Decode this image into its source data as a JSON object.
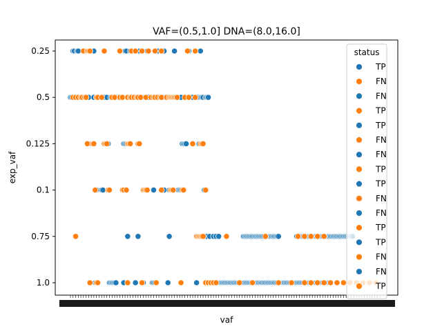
{
  "chart_data": {
    "type": "scatter",
    "title": "VAF=(0.5,1.0] DNA=(8.0,16.0]",
    "xlabel": "vaf",
    "ylabel": "exp_vaf",
    "x_scale": "categorical",
    "y_scale": "categorical",
    "y_categories": [
      "0.25",
      "0.5",
      "0.125",
      "0.1",
      "0.75",
      "1.0"
    ],
    "x_ticklabels_note": "dense overlapping categorical labels, unreadable",
    "grid": false,
    "legend": {
      "title": "status",
      "placement": "upper right",
      "entries": [
        {
          "label": "TP",
          "color": "#1f77b4"
        },
        {
          "label": "FN",
          "color": "#ff7f0e"
        },
        {
          "label": "FN",
          "color": "#1f77b4"
        },
        {
          "label": "TP",
          "color": "#ff7f0e"
        },
        {
          "label": "TP",
          "color": "#1f77b4"
        },
        {
          "label": "FN",
          "color": "#ff7f0e"
        },
        {
          "label": "FN",
          "color": "#1f77b4"
        },
        {
          "label": "TP",
          "color": "#ff7f0e"
        },
        {
          "label": "TP",
          "color": "#1f77b4"
        },
        {
          "label": "FN",
          "color": "#ff7f0e"
        },
        {
          "label": "FN",
          "color": "#1f77b4"
        },
        {
          "label": "TP",
          "color": "#ff7f0e"
        },
        {
          "label": "TP",
          "color": "#1f77b4"
        },
        {
          "label": "FN",
          "color": "#ff7f0e"
        },
        {
          "label": "FN",
          "color": "#1f77b4"
        },
        {
          "label": "TP",
          "color": "#ff7f0e"
        }
      ]
    },
    "colors": {
      "blue": "#1f77b4",
      "orange": "#ff7f0e"
    },
    "x_category_count": 240,
    "series": [
      {
        "color": "#1f77b4",
        "points": [
          {
            "y": "0.25",
            "x": [
              2,
              3,
              5,
              6,
              18,
              42,
              43,
              46,
              53,
              59,
              67,
              72,
              80,
              91,
              100
            ]
          },
          {
            "y": "0.5",
            "x": [
              0,
              1,
              3,
              5,
              9,
              10,
              13,
              14,
              18,
              25,
              26,
              28,
              31,
              33,
              36,
              37,
              40,
              46,
              48,
              56,
              57,
              58,
              60,
              63,
              64,
              68,
              72,
              73,
              83,
              85,
              94,
              98,
              100,
              101,
              102,
              104,
              105,
              106
            ]
          },
          {
            "y": "0.125",
            "x": [
              16,
              29,
              41,
              42,
              43,
              86,
              87,
              88,
              89,
              99
            ]
          },
          {
            "y": "0.1",
            "x": [
              20,
              24,
              25,
              64,
              72,
              76,
              83,
              84,
              85,
              103
            ]
          },
          {
            "y": "0.75",
            "x": [
              44,
              52,
              76,
              103,
              105,
              107,
              110,
              112,
              114,
              133,
              134,
              135,
              136,
              137,
              138,
              139,
              140,
              141,
              142,
              143,
              144,
              145,
              146,
              147,
              148,
              149,
              150,
              151,
              152,
              153,
              154,
              155,
              156,
              157,
              158,
              159,
              160,
              174,
              175,
              176,
              177,
              178,
              179,
              180,
              181,
              182,
              183,
              184,
              185,
              186,
              187,
              188,
              189,
              190,
              191,
              192,
              193,
              194,
              195,
              196,
              197,
              198,
              199,
              200,
              201,
              202,
              203,
              204,
              205,
              206,
              207,
              208,
              209,
              210,
              211,
              212,
              213,
              214,
              215,
              216,
              217
            ]
          },
          {
            "y": "1.0",
            "x": [
              19,
              30,
              31,
              32,
              33,
              34,
              35,
              41,
              50,
              56,
              63,
              64,
              65,
              75,
              97,
              112,
              113,
              114,
              115,
              116,
              117,
              118,
              119,
              120,
              121,
              122,
              123,
              124,
              125,
              126,
              127,
              128,
              129,
              130,
              131,
              132,
              133,
              134,
              135,
              136,
              137,
              138,
              139,
              140,
              141,
              142,
              143,
              144,
              145,
              146,
              147,
              148,
              149,
              150,
              151,
              152,
              153,
              154,
              155,
              156,
              157,
              158,
              159,
              160,
              161,
              162,
              163,
              164,
              165,
              166,
              167,
              168,
              169,
              170,
              171,
              172,
              173,
              174,
              175,
              176,
              177,
              178,
              179,
              180,
              181,
              182,
              183,
              184,
              185,
              186,
              187,
              188,
              189,
              190,
              191,
              192,
              193,
              194,
              195,
              196,
              197,
              198,
              199,
              200
            ]
          }
        ]
      },
      {
        "color": "#ff7f0e",
        "points": [
          {
            "y": "0.25",
            "x": [
              10,
              13,
              14,
              15,
              26,
              38,
              47,
              50,
              55,
              60,
              65,
              70,
              90,
              96
            ]
          },
          {
            "y": "0.5",
            "x": [
              2,
              4,
              6,
              8,
              9,
              11,
              12,
              20,
              21,
              24,
              32,
              34,
              38,
              40,
              44,
              46,
              47,
              49,
              51,
              52,
              54,
              58,
              62,
              64,
              65,
              67,
              69,
              70,
              74,
              76,
              77,
              78,
              79,
              80,
              81,
              82,
              88,
              91,
              96
            ]
          },
          {
            "y": "0.125",
            "x": [
              13,
              17,
              18,
              26,
              27,
              28,
              44,
              45,
              46,
              52,
              53,
              94,
              100,
              101,
              102
            ]
          },
          {
            "y": "0.1",
            "x": [
              19,
              29,
              30,
              40,
              41,
              43,
              56,
              57,
              58,
              59,
              70,
              77,
              78,
              79,
              86,
              87,
              104
            ]
          },
          {
            "y": "0.75",
            "x": [
              4,
              97,
              98,
              99,
              100,
              101,
              102,
              120,
              150,
              175,
              180,
              185,
              190,
              195
            ]
          },
          {
            "y": "1.0",
            "x": [
              15,
              20,
              21,
              44,
              55,
              66,
              85,
              104,
              106,
              108,
              110,
              112,
              130,
              140,
              160,
              170,
              180,
              185,
              190,
              195,
              200,
              205,
              210,
              215,
              220,
              225,
              230,
              235
            ]
          }
        ]
      }
    ]
  }
}
